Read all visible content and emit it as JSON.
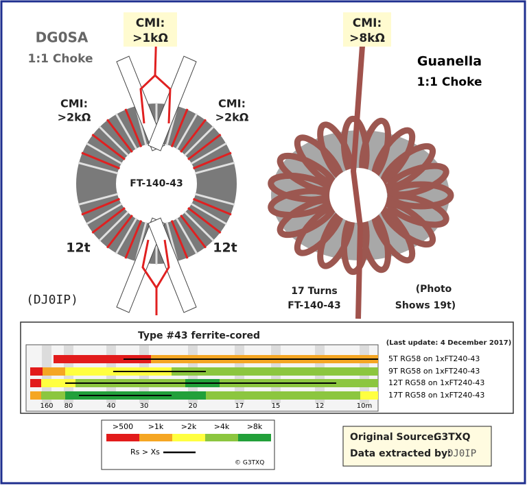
{
  "left": {
    "title": "DG0SA",
    "subtitle": "1:1 Choke",
    "cmi_top": [
      "CMI:",
      ">1kΩ"
    ],
    "cmi_left": [
      "CMI:",
      ">2kΩ"
    ],
    "cmi_right": [
      "CMI:",
      ">2kΩ"
    ],
    "core": "FT-140-43",
    "turns_left": "12t",
    "turns_right": "12t",
    "credit": "(DJ0IP)"
  },
  "right": {
    "cmi_top": [
      "CMI:",
      ">8kΩ"
    ],
    "title": "Guanella",
    "subtitle": "1:1 Choke",
    "turns": [
      "17 Turns",
      "FT-140-43"
    ],
    "note": [
      "(Photo",
      "Shows 19t)"
    ]
  },
  "chart": {
    "title": "Type #43 ferrite-cored",
    "update": "(Last update: 4 December 2017)",
    "rows": [
      "5T RG58 on 1xFT240-43",
      "9T RG58 on 1xFT240-43",
      "12T RG58 on 1xFT240-43",
      "17T RG58 on 1xFT240-43"
    ],
    "bands": [
      "160",
      "80",
      "40",
      "30",
      "20",
      "17",
      "15",
      "12",
      "10m"
    ]
  },
  "legend": {
    "labels": [
      ">500",
      ">1k",
      ">2k",
      ">4k",
      ">8k"
    ],
    "rs": "Rs > Xs",
    "copyright": "© G3TXQ"
  },
  "source": {
    "line1": "Original Source:",
    "line1_name": "G3TXQ",
    "line2": "Data extracted by:",
    "line2_name": "DJ0IP"
  }
}
